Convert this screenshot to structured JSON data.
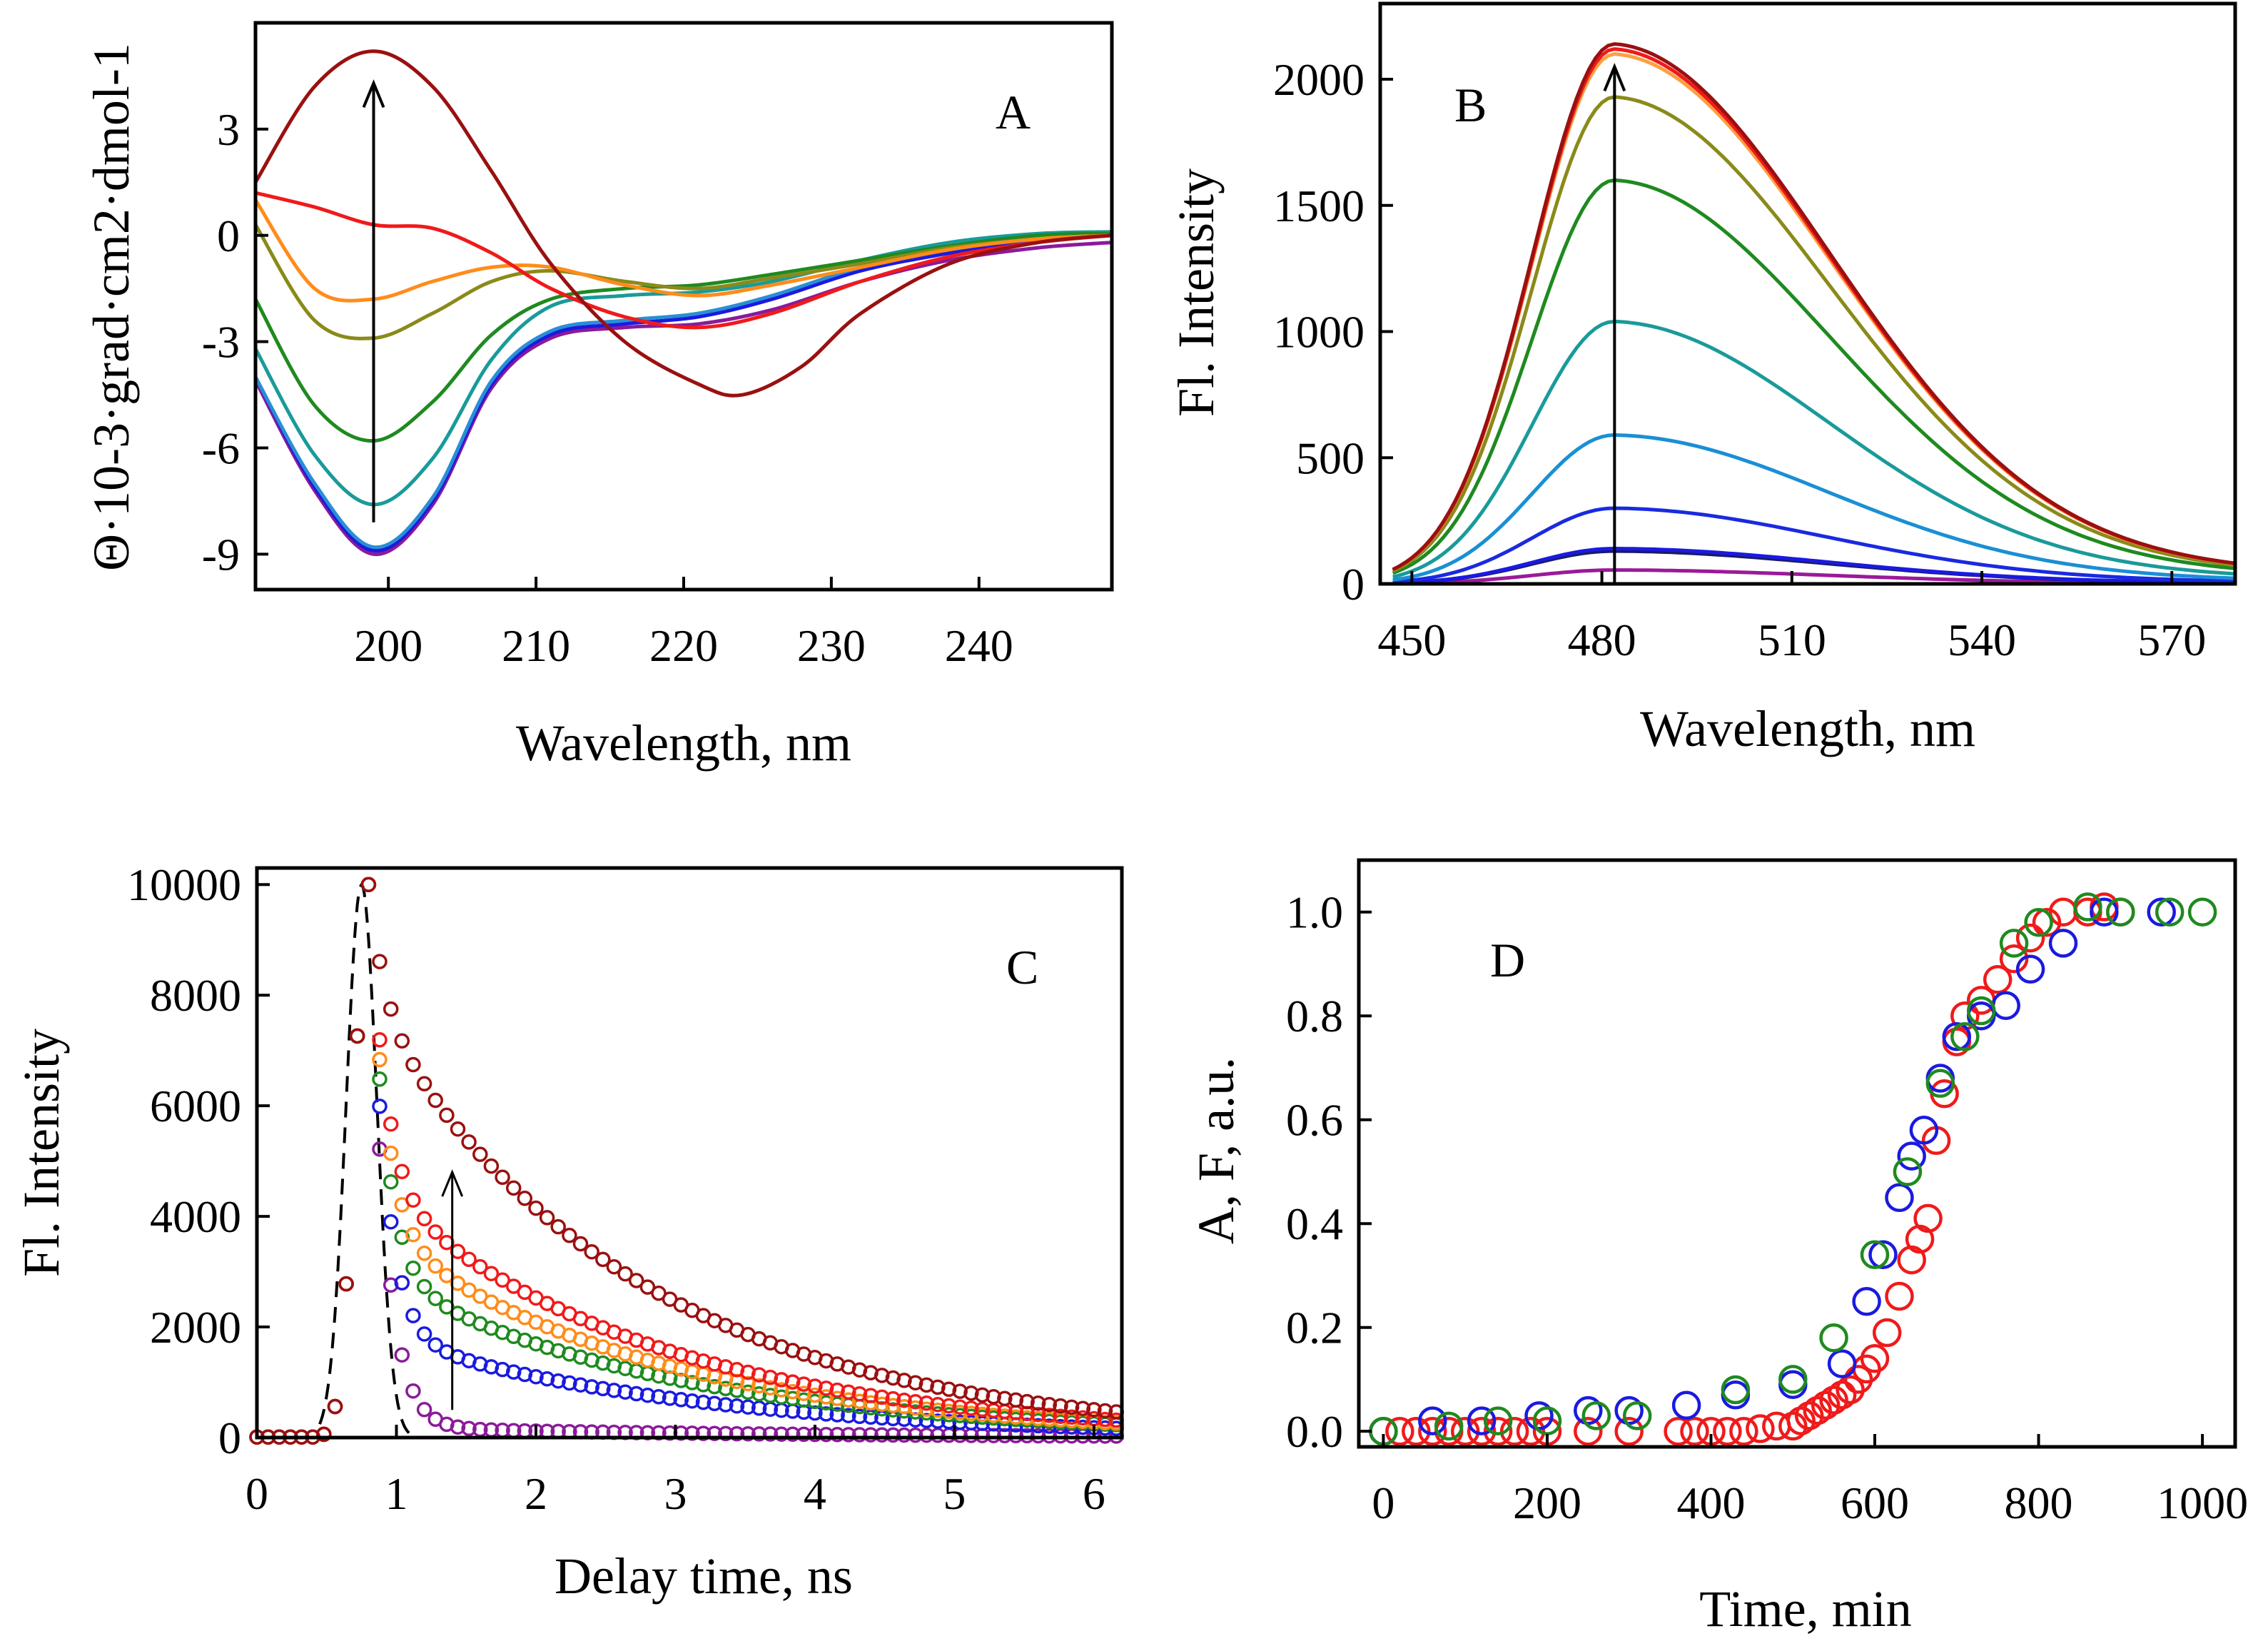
{
  "chart_data": [
    {
      "panel": "A",
      "type": "line",
      "xlabel": "Wavelength, nm",
      "ylabel": "Θ·10-3·grad·cm2·dmol-1",
      "xlim": [
        191,
        249
      ],
      "ylim": [
        -10,
        6
      ],
      "xticks": [
        200,
        210,
        220,
        230,
        240
      ],
      "yticks": [
        -9,
        -6,
        -3,
        0,
        3
      ],
      "arrow": {
        "x": 199,
        "from": -8.1,
        "to": 4.3
      },
      "series": [
        {
          "name": "purple",
          "color": "#8b1a9a",
          "points": [
            [
              191,
              -4.1
            ],
            [
              195,
              -7.2
            ],
            [
              199,
              -9.0
            ],
            [
              203,
              -7.6
            ],
            [
              207,
              -4.3
            ],
            [
              211,
              -2.9
            ],
            [
              216,
              -2.6
            ],
            [
              221,
              -2.5
            ],
            [
              226,
              -2.1
            ],
            [
              232,
              -1.3
            ],
            [
              238,
              -0.7
            ],
            [
              244,
              -0.35
            ],
            [
              249,
              -0.2
            ]
          ]
        },
        {
          "name": "blue",
          "color": "#1a1ae0",
          "points": [
            [
              191,
              -4.0
            ],
            [
              195,
              -7.1
            ],
            [
              199,
              -8.9
            ],
            [
              203,
              -7.5
            ],
            [
              207,
              -4.2
            ],
            [
              211,
              -2.8
            ],
            [
              216,
              -2.5
            ],
            [
              221,
              -2.3
            ],
            [
              226,
              -1.8
            ],
            [
              232,
              -1.0
            ],
            [
              238,
              -0.5
            ],
            [
              244,
              -0.1
            ],
            [
              249,
              0.0
            ]
          ]
        },
        {
          "name": "sky",
          "color": "#2a8fd4",
          "points": [
            [
              191,
              -4.0
            ],
            [
              195,
              -7.0
            ],
            [
              199,
              -8.8
            ],
            [
              203,
              -7.4
            ],
            [
              207,
              -4.1
            ],
            [
              211,
              -2.7
            ],
            [
              216,
              -2.4
            ],
            [
              221,
              -2.2
            ],
            [
              226,
              -1.7
            ],
            [
              232,
              -0.9
            ],
            [
              238,
              -0.4
            ],
            [
              244,
              -0.05
            ],
            [
              249,
              0.05
            ]
          ]
        },
        {
          "name": "teal",
          "color": "#1a9a9a",
          "points": [
            [
              191,
              -3.2
            ],
            [
              195,
              -6.2
            ],
            [
              199,
              -7.6
            ],
            [
              203,
              -6.3
            ],
            [
              207,
              -3.5
            ],
            [
              211,
              -2.0
            ],
            [
              216,
              -1.7
            ],
            [
              221,
              -1.6
            ],
            [
              226,
              -1.3
            ],
            [
              232,
              -0.7
            ],
            [
              238,
              -0.2
            ],
            [
              244,
              0.05
            ],
            [
              249,
              0.1
            ]
          ]
        },
        {
          "name": "green",
          "color": "#1f8a1f",
          "points": [
            [
              191,
              -1.8
            ],
            [
              195,
              -4.8
            ],
            [
              199,
              -5.8
            ],
            [
              203,
              -4.7
            ],
            [
              207,
              -2.8
            ],
            [
              211,
              -1.8
            ],
            [
              216,
              -1.5
            ],
            [
              221,
              -1.4
            ],
            [
              226,
              -1.1
            ],
            [
              232,
              -0.7
            ],
            [
              238,
              -0.3
            ],
            [
              244,
              0.0
            ],
            [
              249,
              0.05
            ]
          ]
        },
        {
          "name": "olive",
          "color": "#8a8a1a",
          "points": [
            [
              191,
              0.3
            ],
            [
              195,
              -2.4
            ],
            [
              199,
              -2.9
            ],
            [
              203,
              -2.2
            ],
            [
              207,
              -1.3
            ],
            [
              211,
              -1.0
            ],
            [
              216,
              -1.3
            ],
            [
              221,
              -1.5
            ],
            [
              226,
              -1.2
            ],
            [
              232,
              -0.8
            ],
            [
              238,
              -0.35
            ],
            [
              244,
              -0.1
            ],
            [
              249,
              0.0
            ]
          ]
        },
        {
          "name": "orange",
          "color": "#ff8c1a",
          "points": [
            [
              191,
              1.0
            ],
            [
              195,
              -1.5
            ],
            [
              199,
              -1.8
            ],
            [
              203,
              -1.3
            ],
            [
              207,
              -0.9
            ],
            [
              211,
              -0.9
            ],
            [
              216,
              -1.4
            ],
            [
              221,
              -1.7
            ],
            [
              226,
              -1.4
            ],
            [
              232,
              -0.9
            ],
            [
              238,
              -0.4
            ],
            [
              244,
              -0.1
            ],
            [
              249,
              0.0
            ]
          ]
        },
        {
          "name": "red",
          "color": "#f01a1a",
          "points": [
            [
              191,
              1.2
            ],
            [
              195,
              0.8
            ],
            [
              199,
              0.3
            ],
            [
              203,
              0.2
            ],
            [
              207,
              -0.5
            ],
            [
              211,
              -1.5
            ],
            [
              216,
              -2.3
            ],
            [
              221,
              -2.6
            ],
            [
              226,
              -2.2
            ],
            [
              232,
              -1.3
            ],
            [
              238,
              -0.6
            ],
            [
              244,
              -0.2
            ],
            [
              249,
              0.0
            ]
          ]
        },
        {
          "name": "darkred",
          "color": "#9a1010",
          "points": [
            [
              191,
              1.5
            ],
            [
              195,
              4.2
            ],
            [
              199,
              5.2
            ],
            [
              203,
              4.2
            ],
            [
              207,
              1.8
            ],
            [
              211,
              -0.8
            ],
            [
              216,
              -3.0
            ],
            [
              221,
              -4.2
            ],
            [
              224,
              -4.5
            ],
            [
              228,
              -3.7
            ],
            [
              232,
              -2.2
            ],
            [
              238,
              -0.8
            ],
            [
              244,
              -0.2
            ],
            [
              249,
              0.0
            ]
          ]
        }
      ]
    },
    {
      "panel": "B",
      "type": "line",
      "xlabel": "Wavelength, nm",
      "ylabel": "Fl. Intensity",
      "xlim": [
        445,
        580
      ],
      "ylim": [
        0,
        2300
      ],
      "xticks": [
        450,
        480,
        510,
        540,
        570
      ],
      "yticks": [
        0,
        500,
        1000,
        1500,
        2000
      ],
      "arrow": {
        "x": 482,
        "from": 0,
        "to": 2050
      },
      "peaks": [
        55,
        130,
        140,
        300,
        590,
        1040,
        1600,
        1930,
        2100,
        2120,
        2140
      ],
      "colors": [
        "#9a1a9a",
        "#1a1a6a",
        "#1a1ae0",
        "#1a2ae0",
        "#1a8fd4",
        "#1a9a9a",
        "#1f8a1f",
        "#8a8a1a",
        "#ffa040",
        "#f01a1a",
        "#9a1010"
      ]
    },
    {
      "panel": "C",
      "type": "scatter",
      "xlabel": "Delay time, ns",
      "ylabel": "Fl. Intensity",
      "xlim": [
        0,
        6.2
      ],
      "ylim": [
        0,
        10300
      ],
      "xticks": [
        0,
        1,
        2,
        3,
        4,
        5,
        6
      ],
      "yticks": [
        0,
        2000,
        4000,
        6000,
        8000,
        10000
      ],
      "arrow": {
        "x": 1.4,
        "from": 500,
        "to": 4800
      },
      "irf": {
        "center": 0.75,
        "sigma": 0.11,
        "amp": 10000
      },
      "series": [
        {
          "name": "purple",
          "color": "#8b1a9a",
          "amp": 10000,
          "tail": 180,
          "tau": 2.8
        },
        {
          "name": "blue",
          "color": "#1a1ae0",
          "amp": 10000,
          "tail": 1900,
          "tau": 2.2
        },
        {
          "name": "green",
          "color": "#1f8a1f",
          "amp": 10000,
          "tail": 3000,
          "tau": 2.1
        },
        {
          "name": "orange",
          "color": "#ff8c1a",
          "amp": 10000,
          "tail": 3800,
          "tau": 2.0
        },
        {
          "name": "red",
          "color": "#f01a1a",
          "amp": 10000,
          "tail": 4600,
          "tau": 2.0
        },
        {
          "name": "darkred",
          "color": "#9a1010",
          "amp": 10000,
          "tail": 7800,
          "tau": 1.9
        }
      ]
    },
    {
      "panel": "D",
      "type": "scatter",
      "xlabel": "Time, min",
      "ylabel": "A, F,  a.u.",
      "xlim": [
        -30,
        1040
      ],
      "ylim": [
        -0.03,
        1.1
      ],
      "xticks": [
        0,
        200,
        400,
        600,
        800,
        1000
      ],
      "yticks": [
        0.0,
        0.2,
        0.4,
        0.6,
        0.8,
        1.0
      ],
      "series": [
        {
          "name": "red",
          "color": "#f01a1a",
          "points": [
            [
              0,
              0
            ],
            [
              20,
              0
            ],
            [
              40,
              0
            ],
            [
              60,
              0
            ],
            [
              80,
              0
            ],
            [
              100,
              0
            ],
            [
              120,
              0
            ],
            [
              140,
              0
            ],
            [
              160,
              0
            ],
            [
              180,
              0
            ],
            [
              200,
              0
            ],
            [
              250,
              0
            ],
            [
              300,
              0
            ],
            [
              360,
              0
            ],
            [
              380,
              0
            ],
            [
              400,
              0
            ],
            [
              420,
              0
            ],
            [
              440,
              0
            ],
            [
              460,
              0.005
            ],
            [
              480,
              0.01
            ],
            [
              500,
              0.01
            ],
            [
              510,
              0.02
            ],
            [
              520,
              0.03
            ],
            [
              530,
              0.04
            ],
            [
              540,
              0.05
            ],
            [
              550,
              0.06
            ],
            [
              560,
              0.07
            ],
            [
              570,
              0.08
            ],
            [
              580,
              0.1
            ],
            [
              590,
              0.12
            ],
            [
              600,
              0.14
            ],
            [
              615,
              0.19
            ],
            [
              630,
              0.26
            ],
            [
              645,
              0.33
            ],
            [
              655,
              0.37
            ],
            [
              665,
              0.41
            ],
            [
              675,
              0.56
            ],
            [
              685,
              0.65
            ],
            [
              700,
              0.75
            ],
            [
              710,
              0.8
            ],
            [
              730,
              0.83
            ],
            [
              750,
              0.87
            ],
            [
              770,
              0.91
            ],
            [
              790,
              0.95
            ],
            [
              810,
              0.98
            ],
            [
              830,
              1.0
            ],
            [
              860,
              1.0
            ],
            [
              880,
              1.01
            ],
            [
              900,
              1.0
            ]
          ]
        },
        {
          "name": "blue",
          "color": "#1a1ae0",
          "points": [
            [
              0,
              0
            ],
            [
              60,
              0.02
            ],
            [
              120,
              0.02
            ],
            [
              190,
              0.03
            ],
            [
              250,
              0.04
            ],
            [
              300,
              0.04
            ],
            [
              370,
              0.05
            ],
            [
              430,
              0.07
            ],
            [
              500,
              0.09
            ],
            [
              560,
              0.13
            ],
            [
              590,
              0.25
            ],
            [
              610,
              0.34
            ],
            [
              630,
              0.45
            ],
            [
              645,
              0.53
            ],
            [
              660,
              0.58
            ],
            [
              680,
              0.68
            ],
            [
              700,
              0.76
            ],
            [
              730,
              0.8
            ],
            [
              760,
              0.82
            ],
            [
              790,
              0.89
            ],
            [
              830,
              0.94
            ],
            [
              880,
              1.0
            ],
            [
              950,
              1.0
            ]
          ]
        },
        {
          "name": "green",
          "color": "#1f8a1f",
          "points": [
            [
              0,
              0
            ],
            [
              80,
              0.01
            ],
            [
              140,
              0.02
            ],
            [
              200,
              0.02
            ],
            [
              260,
              0.03
            ],
            [
              310,
              0.03
            ],
            [
              430,
              0.08
            ],
            [
              500,
              0.1
            ],
            [
              550,
              0.18
            ],
            [
              600,
              0.34
            ],
            [
              640,
              0.5
            ],
            [
              680,
              0.67
            ],
            [
              710,
              0.76
            ],
            [
              730,
              0.81
            ],
            [
              770,
              0.94
            ],
            [
              800,
              0.98
            ],
            [
              860,
              1.01
            ],
            [
              900,
              1.0
            ],
            [
              960,
              1.0
            ],
            [
              1000,
              1.0
            ]
          ]
        }
      ]
    }
  ]
}
